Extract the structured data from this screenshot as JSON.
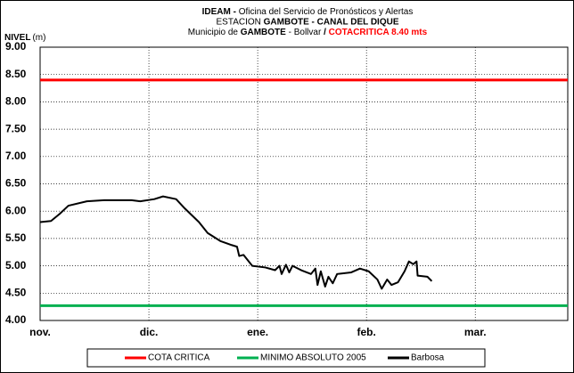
{
  "chart_data": {
    "type": "line",
    "title": [
      [
        {
          "text": "IDEAM - ",
          "bold": true
        },
        {
          "text": "Oficina del Servicio de Pronósticos y Alertas",
          "bold": false
        }
      ],
      [
        {
          "text": "ESTACION ",
          "bold": false
        },
        {
          "text": "GAMBOTE -  CANAL DEL DIQUE",
          "bold": true
        }
      ],
      [
        {
          "text": "Municipio de ",
          "bold": false
        },
        {
          "text": "GAMBOTE",
          "bold": true
        },
        {
          "text": " - Bollvar  ",
          "bold": false
        },
        {
          "text": "/  ",
          "bold": true
        },
        {
          "text": "COTACRITICA 8.40  mts",
          "bold": true,
          "color": "#ff0000"
        }
      ]
    ],
    "y_label": "NIVEL",
    "y_unit": "(m)",
    "xlim": [
      0,
      4.85
    ],
    "xticks": [
      {
        "value": 0,
        "label": "nov."
      },
      {
        "value": 1,
        "label": "dic."
      },
      {
        "value": 2,
        "label": "ene."
      },
      {
        "value": 3,
        "label": "feb."
      },
      {
        "value": 4,
        "label": "mar."
      }
    ],
    "ylim": [
      4,
      9
    ],
    "yticks": [
      {
        "value": 4,
        "label": "4.00"
      },
      {
        "value": 4.5,
        "label": "4.50"
      },
      {
        "value": 5,
        "label": "5.00"
      },
      {
        "value": 5.5,
        "label": "5.50"
      },
      {
        "value": 6,
        "label": "6.00"
      },
      {
        "value": 6.5,
        "label": "6.50"
      },
      {
        "value": 7,
        "label": "7.00"
      },
      {
        "value": 7.5,
        "label": "7.50"
      },
      {
        "value": 8,
        "label": "8.00"
      },
      {
        "value": 8.5,
        "label": "8.50"
      },
      {
        "value": 9,
        "label": "9.00"
      }
    ],
    "grid": true,
    "legend": "bottom",
    "series": [
      {
        "name": "COTA CRITICA",
        "color": "#ff0000",
        "x": [
          0,
          4.85
        ],
        "values": [
          8.4,
          8.4
        ]
      },
      {
        "name": "MINIMO ABSOLUTO 2005",
        "color": "#00b050",
        "x": [
          0,
          4.85
        ],
        "values": [
          4.27,
          4.27
        ]
      },
      {
        "name": "Barbosa",
        "color": "#000000",
        "x": [
          0,
          0.1,
          0.18,
          0.26,
          0.43,
          0.59,
          0.84,
          0.92,
          1.05,
          1.13,
          1.25,
          1.33,
          1.46,
          1.54,
          1.66,
          1.76,
          1.81,
          1.83,
          1.87,
          1.95,
          2.07,
          2.16,
          2.2,
          2.22,
          2.26,
          2.29,
          2.32,
          2.4,
          2.49,
          2.53,
          2.55,
          2.58,
          2.62,
          2.65,
          2.69,
          2.73,
          2.86,
          2.94,
          3.02,
          3.1,
          3.14,
          3.19,
          3.23,
          3.29,
          3.35,
          3.39,
          3.43,
          3.46,
          3.47,
          3.56,
          3.6
        ],
        "values": [
          5.8,
          5.82,
          5.95,
          6.1,
          6.18,
          6.2,
          6.2,
          6.18,
          6.22,
          6.27,
          6.22,
          6.05,
          5.8,
          5.6,
          5.45,
          5.38,
          5.35,
          5.18,
          5.2,
          5.0,
          4.97,
          4.92,
          5.0,
          4.85,
          5.02,
          4.88,
          5.0,
          4.92,
          4.85,
          4.95,
          4.65,
          4.9,
          4.62,
          4.8,
          4.68,
          4.85,
          4.88,
          4.95,
          4.9,
          4.75,
          4.58,
          4.75,
          4.65,
          4.7,
          4.9,
          5.08,
          5.03,
          5.08,
          4.82,
          4.8,
          4.72
        ]
      }
    ]
  }
}
